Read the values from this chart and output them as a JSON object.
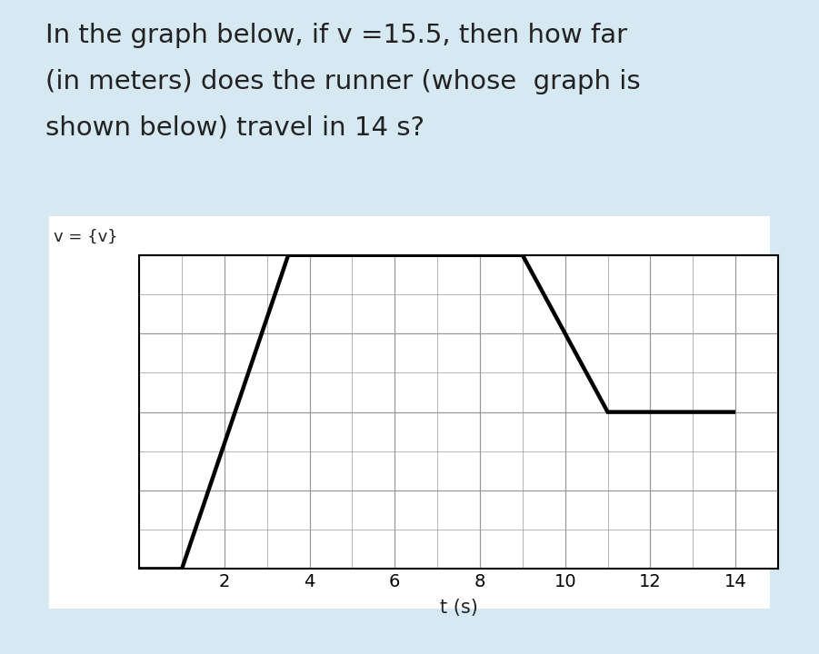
{
  "question_text_line1": "In the graph below, if v =15.5, then how far",
  "question_text_line2": "(in meters) does the runner (whose  graph is",
  "question_text_line3": "shown below) travel in 14 s?",
  "ylabel": "v = {v}",
  "xlabel": "t (s)",
  "bg_color": "#d6e8f2",
  "graph_bg": "#ffffff",
  "line_color": "#000000",
  "line_width": 3.2,
  "grid_color": "#999999",
  "x_ticks": [
    2,
    4,
    6,
    8,
    10,
    12,
    14
  ],
  "x_min": 0,
  "x_max": 15,
  "y_min": 0,
  "y_max": 4,
  "graph_t": [
    0,
    1,
    3.5,
    9,
    11,
    14
  ],
  "graph_v": [
    0,
    0,
    4,
    4,
    2,
    2
  ],
  "text_color": "#222222",
  "question_fontsize": 21,
  "axis_label_fontsize": 15,
  "tick_fontsize": 14,
  "ylabel_fontsize": 13
}
